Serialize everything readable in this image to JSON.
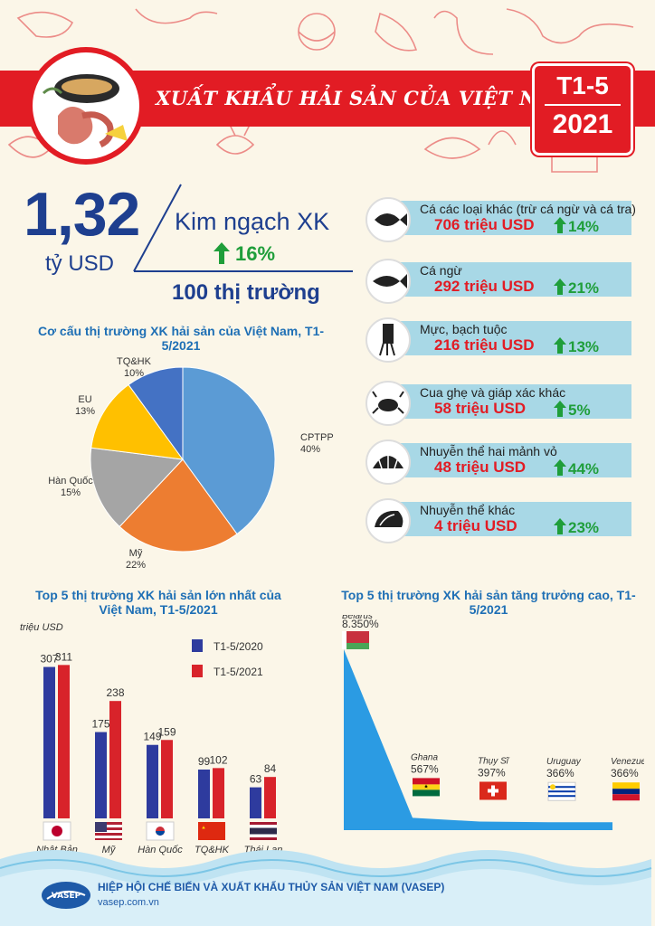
{
  "header": {
    "title": "XUẤT KHẨU HẢI SẢN CỦA VIỆT NAM",
    "period_line1": "T1-5",
    "period_line2": "2021"
  },
  "summary": {
    "total_value": "1,32",
    "total_unit": "tỷ USD",
    "label": "Kim ngạch XK",
    "growth": "16%",
    "markets": "100 thị trường"
  },
  "products": [
    {
      "name": "Cá các loại khác (trừ cá ngừ và cá tra)",
      "value": "706 triệu USD",
      "growth": "14%",
      "icon": "fish-icon"
    },
    {
      "name": "Cá ngừ",
      "value": "292 triệu USD",
      "growth": "21%",
      "icon": "tuna-icon"
    },
    {
      "name": "Mực, bạch tuộc",
      "value": "216 triệu USD",
      "growth": "13%",
      "icon": "squid-icon"
    },
    {
      "name": "Cua ghẹ và giáp xác khác",
      "value": "58 triệu USD",
      "growth": "5%",
      "icon": "crab-icon"
    },
    {
      "name": "Nhuyễn thể hai mảnh vỏ",
      "value": "48 triệu USD",
      "growth": "44%",
      "icon": "clam-icon"
    },
    {
      "name": "Nhuyễn thể khác",
      "value": "4 triệu USD",
      "growth": "23%",
      "icon": "shell-icon"
    }
  ],
  "chart_data": [
    {
      "type": "pie",
      "title": "Cơ cấu thị trường XK hải sản của Việt Nam, T1-5/2021",
      "slices": [
        {
          "label": "CPTPP",
          "value": 40,
          "display": "40%",
          "color": "#5b9bd5"
        },
        {
          "label": "Mỹ",
          "value": 22,
          "display": "22%",
          "color": "#ed7d31"
        },
        {
          "label": "Hàn Quốc",
          "value": 15,
          "display": "15%",
          "color": "#a5a5a5"
        },
        {
          "label": "EU",
          "value": 13,
          "display": "13%",
          "color": "#ffc000"
        },
        {
          "label": "TQ&HK",
          "value": 10,
          "display": "10%",
          "color": "#4472c4"
        }
      ]
    },
    {
      "type": "bar",
      "title": "Top 5 thị trường XK hải sản lớn nhất của Việt Nam, T1-5/2021",
      "ylabel": "triệu USD",
      "categories": [
        "Nhật Bản",
        "Mỹ",
        "Hàn Quốc",
        "TQ&HK",
        "Thái Lan"
      ],
      "series": [
        {
          "name": "T1-5/2020",
          "values": [
            307,
            175,
            149,
            99,
            63
          ],
          "color": "#2e3b9e"
        },
        {
          "name": "T1-5/2021",
          "values": [
            311,
            238,
            159,
            102,
            84
          ],
          "color": "#d8232a"
        }
      ],
      "ylim": [
        0,
        330
      ]
    },
    {
      "type": "area",
      "title": "Top 5 thị trường XK hải sản tăng trưởng cao, T1-5/2021",
      "categories": [
        "Belarus",
        "Ghana",
        "Thụy Sĩ",
        "Uruguay",
        "Venezuela"
      ],
      "values": [
        8350,
        567,
        397,
        366,
        366
      ],
      "labels": [
        "8.350%",
        "567%",
        "397%",
        "366%",
        "366%"
      ],
      "color": "#2b9be3"
    }
  ],
  "footer": {
    "org": "HIỆP HỘI CHẾ BIẾN VÀ XUẤT KHẨU THỦY SẢN VIỆT NAM (VASEP)",
    "website": "vasep.com.vn",
    "logo_text": "VASEP"
  }
}
